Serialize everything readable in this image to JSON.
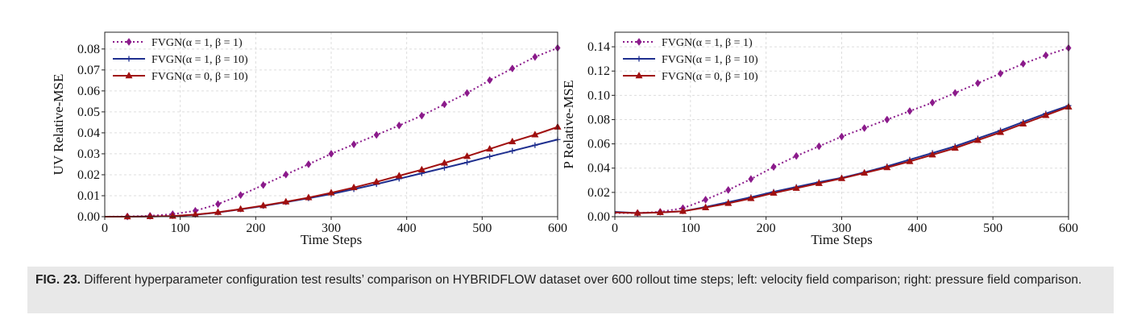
{
  "chart_data": [
    {
      "type": "line",
      "xlabel": "Time Steps",
      "ylabel": "UV Relative-MSE",
      "xlim": [
        0,
        600
      ],
      "ylim": [
        0,
        0.088
      ],
      "xticks": [
        0,
        100,
        200,
        300,
        400,
        500,
        600
      ],
      "xtick_labels": [
        "0",
        "100",
        "200",
        "300",
        "400",
        "500",
        "600"
      ],
      "yticks": [
        0,
        0.01,
        0.02,
        0.03,
        0.04,
        0.05,
        0.06,
        0.07,
        0.08
      ],
      "ytick_labels": [
        "0.00",
        "0.01",
        "0.02",
        "0.03",
        "0.04",
        "0.05",
        "0.06",
        "0.07",
        "0.08"
      ],
      "grid": true,
      "legend_position": "top-left",
      "series": [
        {
          "name": "FVGN(α = 1, β = 1)",
          "color": "#8b1a8b",
          "style": "dotted",
          "marker": "diamond",
          "x": [
            0,
            30,
            60,
            90,
            120,
            150,
            180,
            210,
            240,
            270,
            300,
            330,
            360,
            390,
            420,
            450,
            480,
            510,
            540,
            570,
            600
          ],
          "y": [
            0,
            0.0001,
            0.0004,
            0.0012,
            0.0028,
            0.006,
            0.0103,
            0.0151,
            0.0201,
            0.025,
            0.03,
            0.0345,
            0.039,
            0.0435,
            0.0482,
            0.0536,
            0.059,
            0.0651,
            0.0707,
            0.0762,
            0.0805
          ]
        },
        {
          "name": "FVGN(α = 1, β = 10)",
          "color": "#1f2f8f",
          "style": "solid",
          "marker": "plus",
          "x": [
            0,
            30,
            60,
            90,
            120,
            150,
            180,
            210,
            240,
            270,
            300,
            330,
            360,
            390,
            420,
            450,
            480,
            510,
            540,
            570,
            600
          ],
          "y": [
            0,
            0,
            0.0001,
            0.0003,
            0.0009,
            0.002,
            0.0035,
            0.0051,
            0.0069,
            0.0088,
            0.0108,
            0.0131,
            0.0155,
            0.0181,
            0.0207,
            0.0233,
            0.0259,
            0.0287,
            0.0314,
            0.0341,
            0.0368
          ]
        },
        {
          "name": "FVGN(α = 0, β = 10)",
          "color": "#a01010",
          "style": "solid",
          "marker": "triangle",
          "x": [
            0,
            30,
            60,
            90,
            120,
            150,
            180,
            210,
            240,
            270,
            300,
            330,
            360,
            390,
            420,
            450,
            480,
            510,
            540,
            570,
            600
          ],
          "y": [
            0,
            0,
            0.0001,
            0.0003,
            0.001,
            0.0021,
            0.0036,
            0.0053,
            0.0071,
            0.0091,
            0.0114,
            0.0139,
            0.0166,
            0.0195,
            0.0224,
            0.0256,
            0.0288,
            0.0323,
            0.0358,
            0.0391,
            0.0428
          ]
        }
      ]
    },
    {
      "type": "line",
      "xlabel": "Time Steps",
      "ylabel": "P Relative-MSE",
      "xlim": [
        0,
        600
      ],
      "ylim": [
        0,
        0.152
      ],
      "xticks": [
        0,
        100,
        200,
        300,
        400,
        500,
        600
      ],
      "xtick_labels": [
        "0",
        "100",
        "200",
        "300",
        "400",
        "500",
        "600"
      ],
      "yticks": [
        0,
        0.02,
        0.04,
        0.06,
        0.08,
        0.1,
        0.12,
        0.14
      ],
      "ytick_labels": [
        "0.00",
        "0.02",
        "0.04",
        "0.06",
        "0.08",
        "0.10",
        "0.12",
        "0.14"
      ],
      "grid": true,
      "legend_position": "top-left",
      "series": [
        {
          "name": "FVGN(α = 1, β = 1)",
          "color": "#8b1a8b",
          "style": "dotted",
          "marker": "diamond",
          "x": [
            0,
            30,
            60,
            90,
            120,
            150,
            180,
            210,
            240,
            270,
            300,
            330,
            360,
            390,
            420,
            450,
            480,
            510,
            540,
            570,
            600
          ],
          "y": [
            0.003,
            0.003,
            0.004,
            0.007,
            0.014,
            0.022,
            0.031,
            0.041,
            0.05,
            0.058,
            0.066,
            0.073,
            0.08,
            0.087,
            0.094,
            0.102,
            0.11,
            0.118,
            0.126,
            0.133,
            0.139
          ]
        },
        {
          "name": "FVGN(α = 1, β = 10)",
          "color": "#1f2f8f",
          "style": "solid",
          "marker": "plus",
          "x": [
            0,
            30,
            60,
            90,
            120,
            150,
            180,
            210,
            240,
            270,
            300,
            330,
            360,
            390,
            420,
            450,
            480,
            510,
            540,
            570,
            600
          ],
          "y": [
            0.004,
            0.003,
            0.0035,
            0.0045,
            0.008,
            0.012,
            0.016,
            0.0205,
            0.0245,
            0.0285,
            0.032,
            0.0365,
            0.0415,
            0.047,
            0.0525,
            0.058,
            0.0645,
            0.071,
            0.078,
            0.085,
            0.0915
          ]
        },
        {
          "name": "FVGN(α = 0, β = 10)",
          "color": "#a01010",
          "style": "solid",
          "marker": "triangle",
          "x": [
            0,
            30,
            60,
            90,
            120,
            150,
            180,
            210,
            240,
            270,
            300,
            330,
            360,
            390,
            420,
            450,
            480,
            510,
            540,
            570,
            600
          ],
          "y": [
            0.0035,
            0.003,
            0.0035,
            0.0045,
            0.0075,
            0.011,
            0.015,
            0.0195,
            0.0235,
            0.0275,
            0.0315,
            0.036,
            0.0405,
            0.0455,
            0.051,
            0.0565,
            0.063,
            0.0695,
            0.0765,
            0.0835,
            0.0905
          ]
        }
      ]
    }
  ],
  "caption": {
    "label": "FIG. 23.",
    "text": " Different hyperparameter configuration test results’ comparison on HYBRIDFLOW dataset over 600 rollout time steps; left: velocity field comparison; right: pressure field comparison."
  }
}
